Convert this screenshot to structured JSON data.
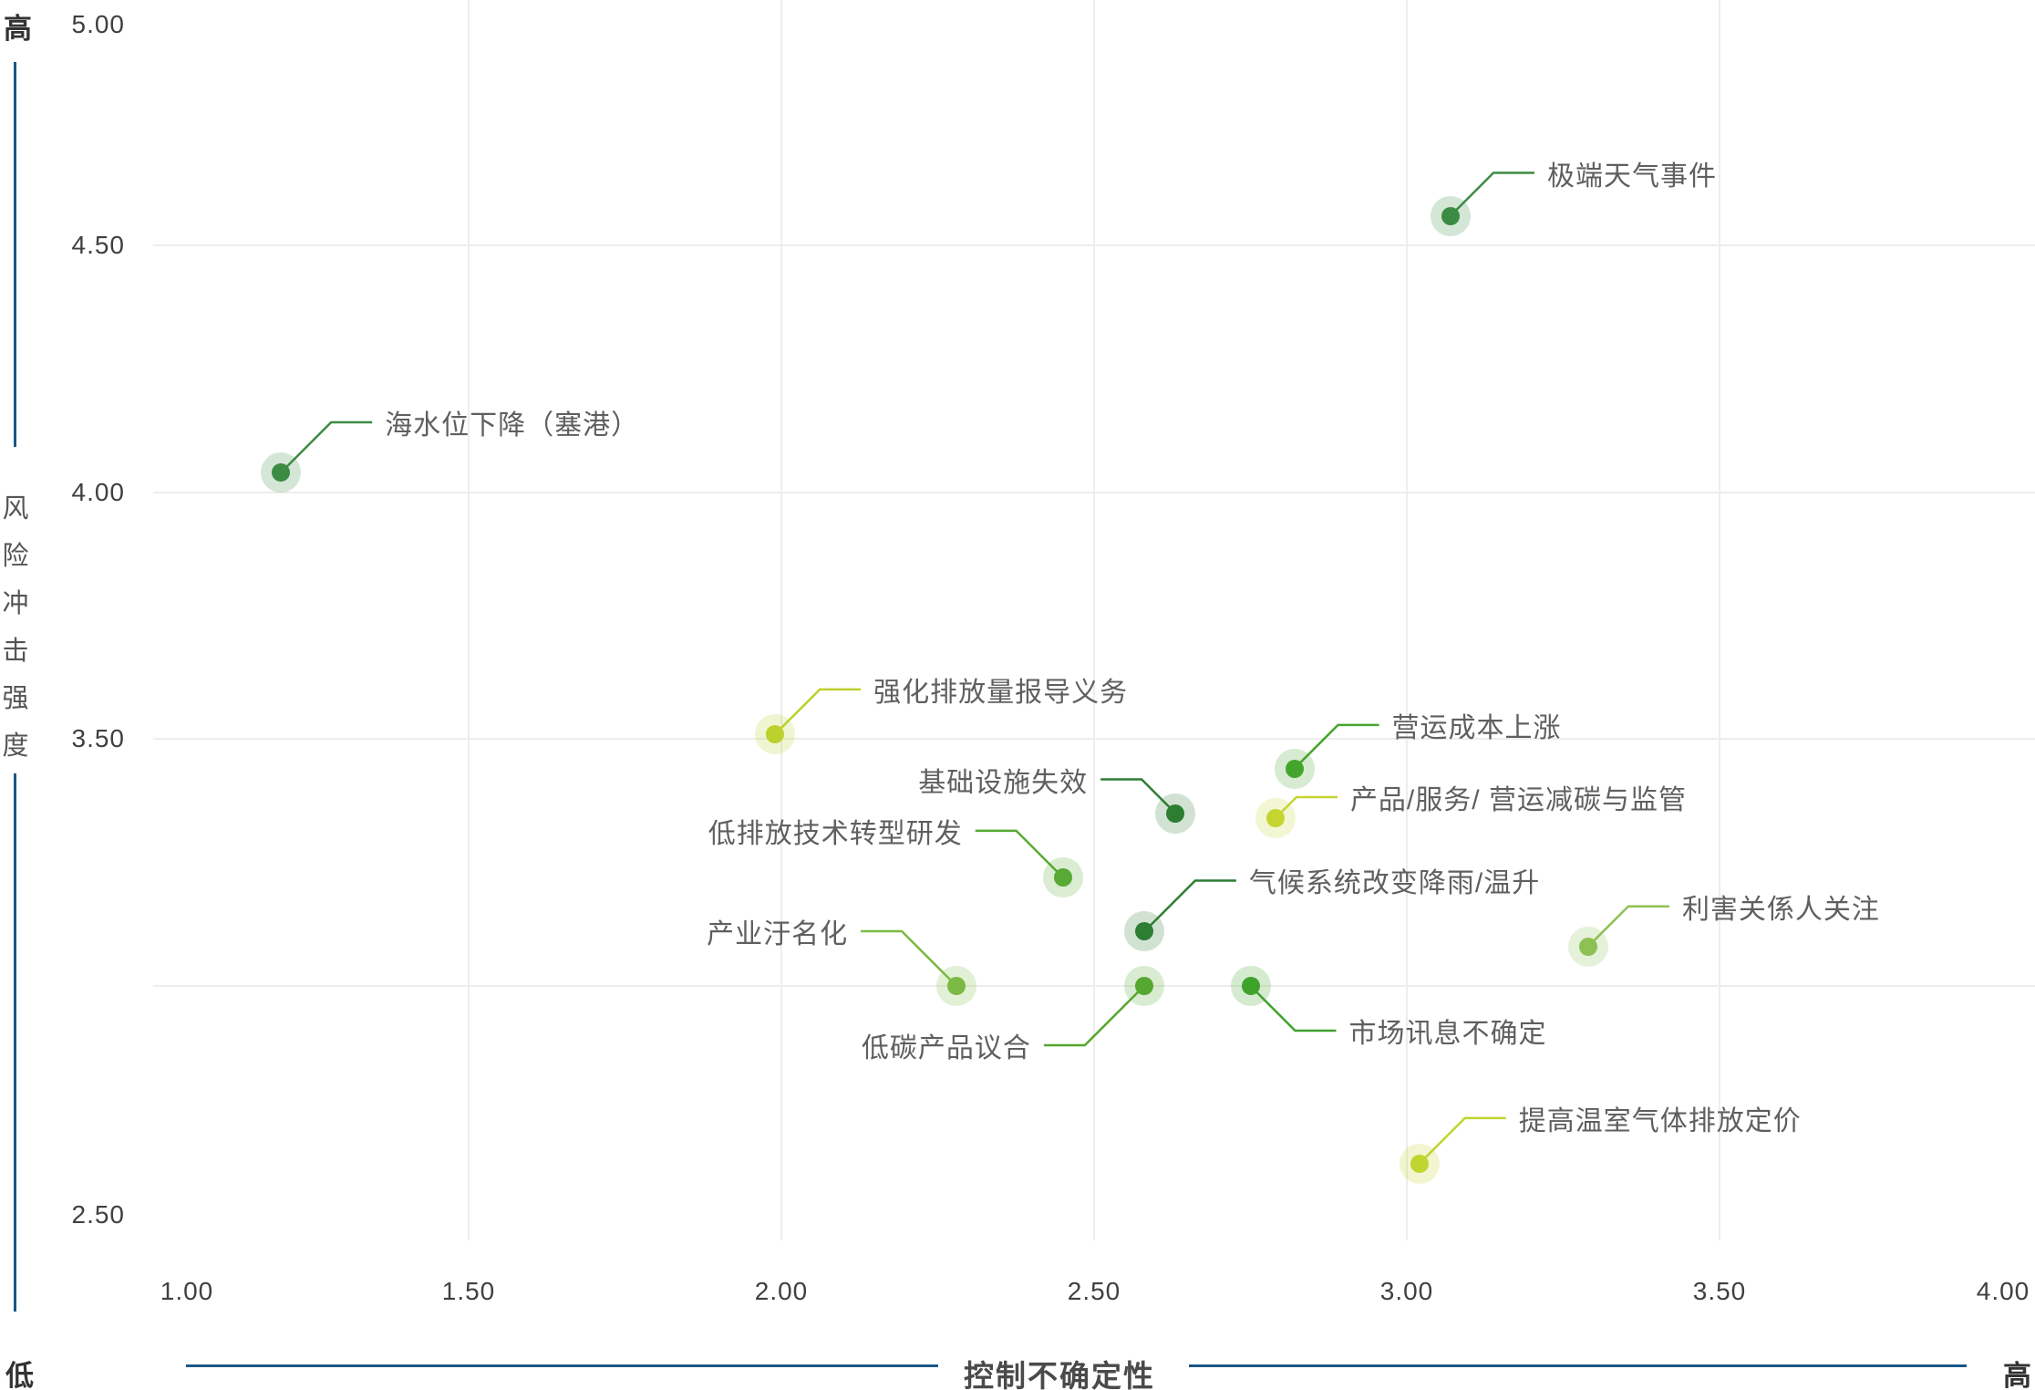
{
  "chart_data": {
    "type": "scatter",
    "title": "",
    "x_axis": {
      "title": "控制不确定性",
      "low_label": "低",
      "high_label": "高",
      "range": [
        1.0,
        4.0
      ],
      "tick_labels": [
        "1.00",
        "1.50",
        "2.00",
        "2.50",
        "3.00",
        "3.50",
        "4.00"
      ],
      "tick_values": [
        1.0,
        1.5,
        2.0,
        2.5,
        3.0,
        3.5,
        4.0
      ],
      "gridline_values": [
        1.5,
        2.0,
        2.5,
        3.0,
        3.5
      ]
    },
    "y_axis": {
      "title": "风险冲击强度",
      "high_label": "高",
      "low_label": "低",
      "range": [
        2.5,
        5.0
      ],
      "tick_labels": [
        "5.00",
        "4.50",
        "4.00",
        "3.50",
        "2.50"
      ],
      "tick_values": [
        5.0,
        4.5,
        4.0,
        3.5,
        2.5
      ],
      "gridline_values": [
        4.5,
        4.0,
        3.5,
        3.0
      ]
    },
    "grid": "on",
    "legend": "none",
    "points": [
      {
        "label": "极端天气事件",
        "x": 3.07,
        "y": 4.56,
        "color": "#3c8b42",
        "label_side": "right",
        "label_dy": -47
      },
      {
        "label": "海水位下降（塞港）",
        "x": 1.2,
        "y": 4.04,
        "color": "#3c8b42",
        "label_side": "right",
        "label_dy": -55
      },
      {
        "label": "强化排放量报导义务",
        "x": 1.99,
        "y": 3.51,
        "color": "#bcd02e",
        "label_side": "right",
        "label_dy": -49
      },
      {
        "label": "营运成本上涨",
        "x": 2.82,
        "y": 3.44,
        "color": "#44a52c",
        "label_side": "right",
        "label_dy": -48
      },
      {
        "label": "基础设施失效",
        "x": 2.63,
        "y": 3.35,
        "color": "#2d7d32",
        "label_side": "left",
        "label_dy": -37
      },
      {
        "label": "产品/服务/ 营运减碳与监管",
        "x": 2.79,
        "y": 3.34,
        "color": "#c5d530",
        "label_side": "right",
        "label_dy": -23
      },
      {
        "label": "低排放技术转型研发",
        "x": 2.45,
        "y": 3.22,
        "color": "#57aa33",
        "label_side": "left",
        "label_dy": -51
      },
      {
        "label": "气候系统改变降雨/温升",
        "x": 2.58,
        "y": 3.11,
        "color": "#2d7d32",
        "label_side": "right",
        "label_dy": -56
      },
      {
        "label": "利害关係人关注",
        "x": 3.29,
        "y": 3.08,
        "color": "#8dc153",
        "label_side": "right",
        "label_dy": -44
      },
      {
        "label": "产业汙名化",
        "x": 2.28,
        "y": 3.0,
        "color": "#7cb944",
        "label_side": "left",
        "label_dy": -60
      },
      {
        "label": "低碳产品议合",
        "x": 2.58,
        "y": 3.0,
        "color": "#54a72f",
        "label_side": "left",
        "label_dy": 65
      },
      {
        "label": "市场讯息不确定",
        "x": 2.75,
        "y": 3.0,
        "color": "#3fa22b",
        "label_side": "right",
        "label_dy": 49
      },
      {
        "label": "提高温室气体排放定价",
        "x": 3.02,
        "y": 2.64,
        "color": "#c0d52f",
        "label_side": "right",
        "label_dy": -50
      }
    ],
    "colors": {
      "axis_line_blue": "#1a5785",
      "gridline": "#ededed",
      "tick_text": "#404040",
      "annotation_text": "#5f5f5f"
    }
  }
}
